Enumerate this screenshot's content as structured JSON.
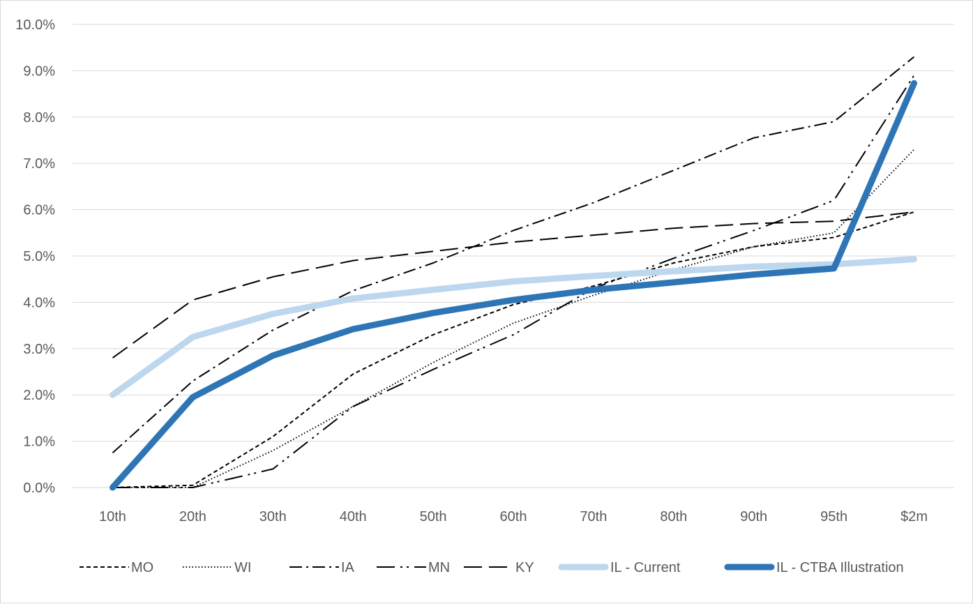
{
  "chart_data": {
    "type": "line",
    "categories": [
      "10th",
      "20th",
      "30th",
      "40th",
      "50th",
      "60th",
      "70th",
      "80th",
      "90th",
      "95th",
      "$2m"
    ],
    "y_tick_labels": [
      "0.0%",
      "1.0%",
      "2.0%",
      "3.0%",
      "4.0%",
      "5.0%",
      "6.0%",
      "7.0%",
      "8.0%",
      "9.0%",
      "10.0%"
    ],
    "ylim": [
      0,
      10
    ],
    "grid": true,
    "legend_position": "bottom",
    "title": "",
    "xlabel": "",
    "ylabel": "",
    "series": [
      {
        "name": "MO",
        "style": "short-dash",
        "color": "#000000",
        "values": [
          0.0,
          0.05,
          1.1,
          2.45,
          3.3,
          3.95,
          4.35,
          4.85,
          5.2,
          5.4,
          5.95
        ]
      },
      {
        "name": "WI",
        "style": "dotted",
        "color": "#000000",
        "values": [
          0.0,
          0.0,
          0.8,
          1.75,
          2.7,
          3.55,
          4.15,
          4.7,
          5.2,
          5.5,
          7.3
        ]
      },
      {
        "name": "IA",
        "style": "dash-dot",
        "color": "#000000",
        "values": [
          0.75,
          2.3,
          3.4,
          4.25,
          4.85,
          5.55,
          6.15,
          6.85,
          7.55,
          7.9,
          9.3
        ]
      },
      {
        "name": "MN",
        "style": "long-dash-dot-dot",
        "color": "#000000",
        "values": [
          0.0,
          0.0,
          0.4,
          1.75,
          2.55,
          3.3,
          4.3,
          4.95,
          5.55,
          6.2,
          8.9
        ]
      },
      {
        "name": "KY",
        "style": "long-dash",
        "color": "#000000",
        "values": [
          2.8,
          4.05,
          4.55,
          4.9,
          5.1,
          5.3,
          5.45,
          5.6,
          5.7,
          5.75,
          5.95
        ]
      },
      {
        "name": "IL - Current",
        "style": "solid",
        "color": "#bdd7ee",
        "values": [
          2.0,
          3.25,
          3.75,
          4.08,
          4.27,
          4.45,
          4.57,
          4.67,
          4.77,
          4.82,
          4.93
        ]
      },
      {
        "name": "IL - CTBA Illustration",
        "style": "solid",
        "color": "#2e75b6",
        "values": [
          0.0,
          1.95,
          2.85,
          3.42,
          3.77,
          4.05,
          4.27,
          4.43,
          4.6,
          4.73,
          8.73
        ]
      }
    ]
  }
}
